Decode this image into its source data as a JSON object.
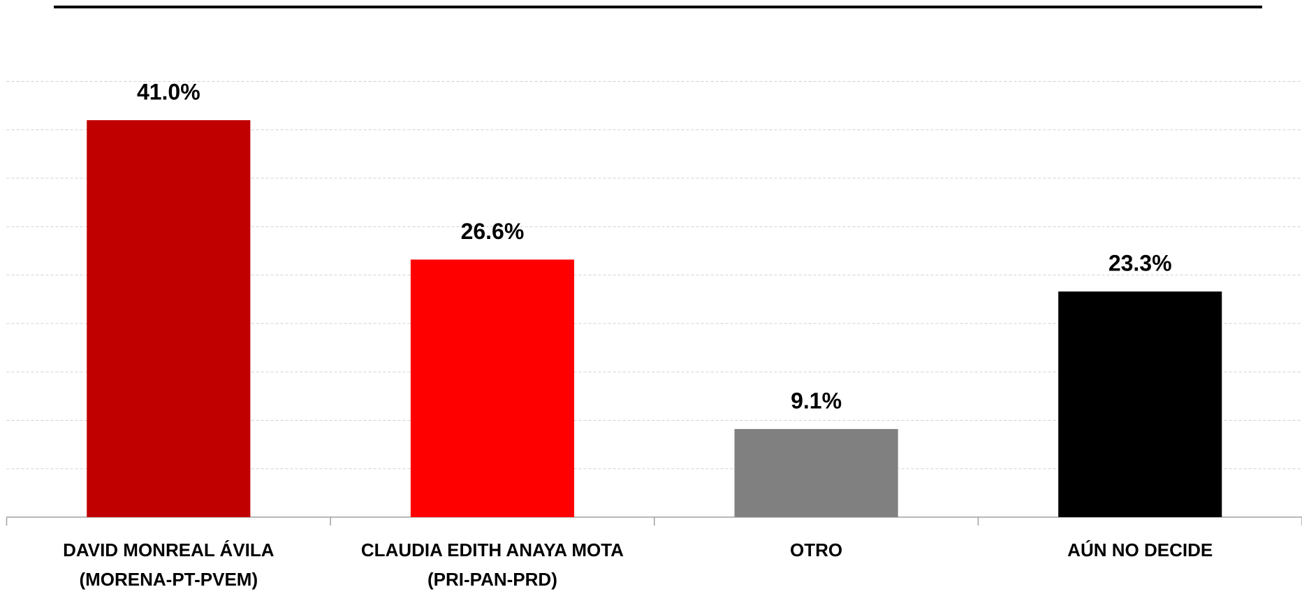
{
  "chart_data": {
    "type": "bar",
    "categories": [
      "DAVID MONREAL ÁVILA (MORENA-PT-PVEM)",
      "CLAUDIA EDITH ANAYA MOTA (PRI-PAN-PRD)",
      "OTRO",
      "AÚN NO DECIDE"
    ],
    "values": [
      41.0,
      26.6,
      9.1,
      23.3
    ],
    "value_labels": [
      "41.0%",
      "26.6%",
      "9.1%",
      "23.3%"
    ],
    "colors": [
      "#c00000",
      "#ff0000",
      "#808080",
      "#000000"
    ],
    "ylim": [
      0,
      45
    ],
    "yticks": [
      0,
      5,
      10,
      15,
      20,
      25,
      30,
      35,
      40,
      45
    ],
    "grid": true
  }
}
